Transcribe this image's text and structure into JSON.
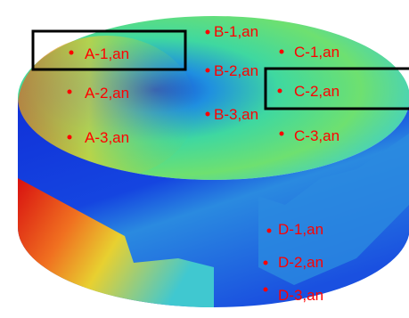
{
  "labels": [
    "A-1,an",
    "A-2,an",
    "A-3,an",
    "B-1,an",
    "B-2,an",
    "B-3,an",
    "C-1,an",
    "C-2,an",
    "C-3,an",
    "D-1,an",
    "D-2,an",
    "D-3,an"
  ]
}
